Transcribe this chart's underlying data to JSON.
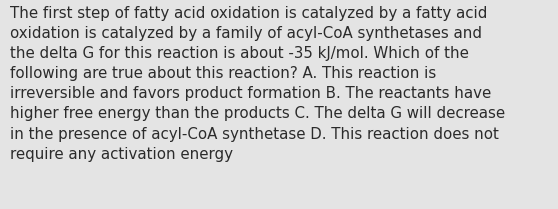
{
  "lines": [
    "The first step of fatty acid oxidation is catalyzed by a fatty acid",
    "oxidation is catalyzed by a family of acyl-CoA synthetases and",
    "the delta G for this reaction is about -35 kJ/mol. Which of the",
    "following are true about this reaction? A. This reaction is",
    "irreversible and favors product formation B. The reactants have",
    "higher free energy than the products C. The delta G will decrease",
    "in the presence of acyl-CoA synthetase D. This reaction does not",
    "require any activation energy"
  ],
  "bg_color": "#e4e4e4",
  "text_color": "#2b2b2b",
  "font_size": 10.8,
  "figsize": [
    5.58,
    2.09
  ],
  "dpi": 100
}
